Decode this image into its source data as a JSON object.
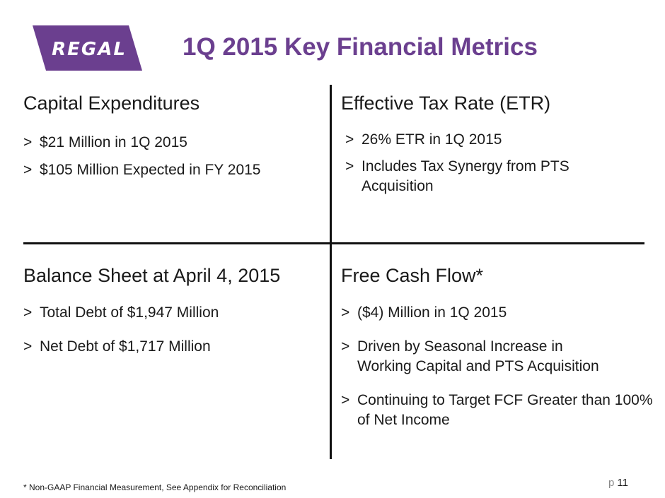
{
  "logo": {
    "text": "REGAL",
    "color": "#6b3f8f"
  },
  "title": "1Q 2015 Key Financial Metrics",
  "accent_color": "#6b3f8f",
  "quadrants": {
    "top_left": {
      "heading": "Capital Expenditures",
      "bullets": [
        "$21 Million in 1Q 2015",
        "$105 Million Expected in FY 2015"
      ]
    },
    "top_right": {
      "heading": "Effective Tax Rate (ETR)",
      "bullets": [
        "26% ETR in 1Q 2015",
        "Includes Tax Synergy from PTS Acquisition"
      ]
    },
    "bottom_left": {
      "heading": "Balance Sheet at April 4, 2015",
      "bullets": [
        "Total Debt of $1,947 Million",
        "Net Debt of $1,717 Million"
      ]
    },
    "bottom_right": {
      "heading": "Free Cash Flow*",
      "bullets": [
        "($4) Million in 1Q 2015",
        "Driven by Seasonal Increase in Working Capital and PTS Acquisition",
        "Continuing to Target FCF Greater than 100% of Net Income"
      ]
    }
  },
  "bullet_marker": ">",
  "footnote": "*  Non-GAAP Financial Measurement, See Appendix for Reconciliation",
  "page": {
    "prefix": "p",
    "number": "11"
  }
}
